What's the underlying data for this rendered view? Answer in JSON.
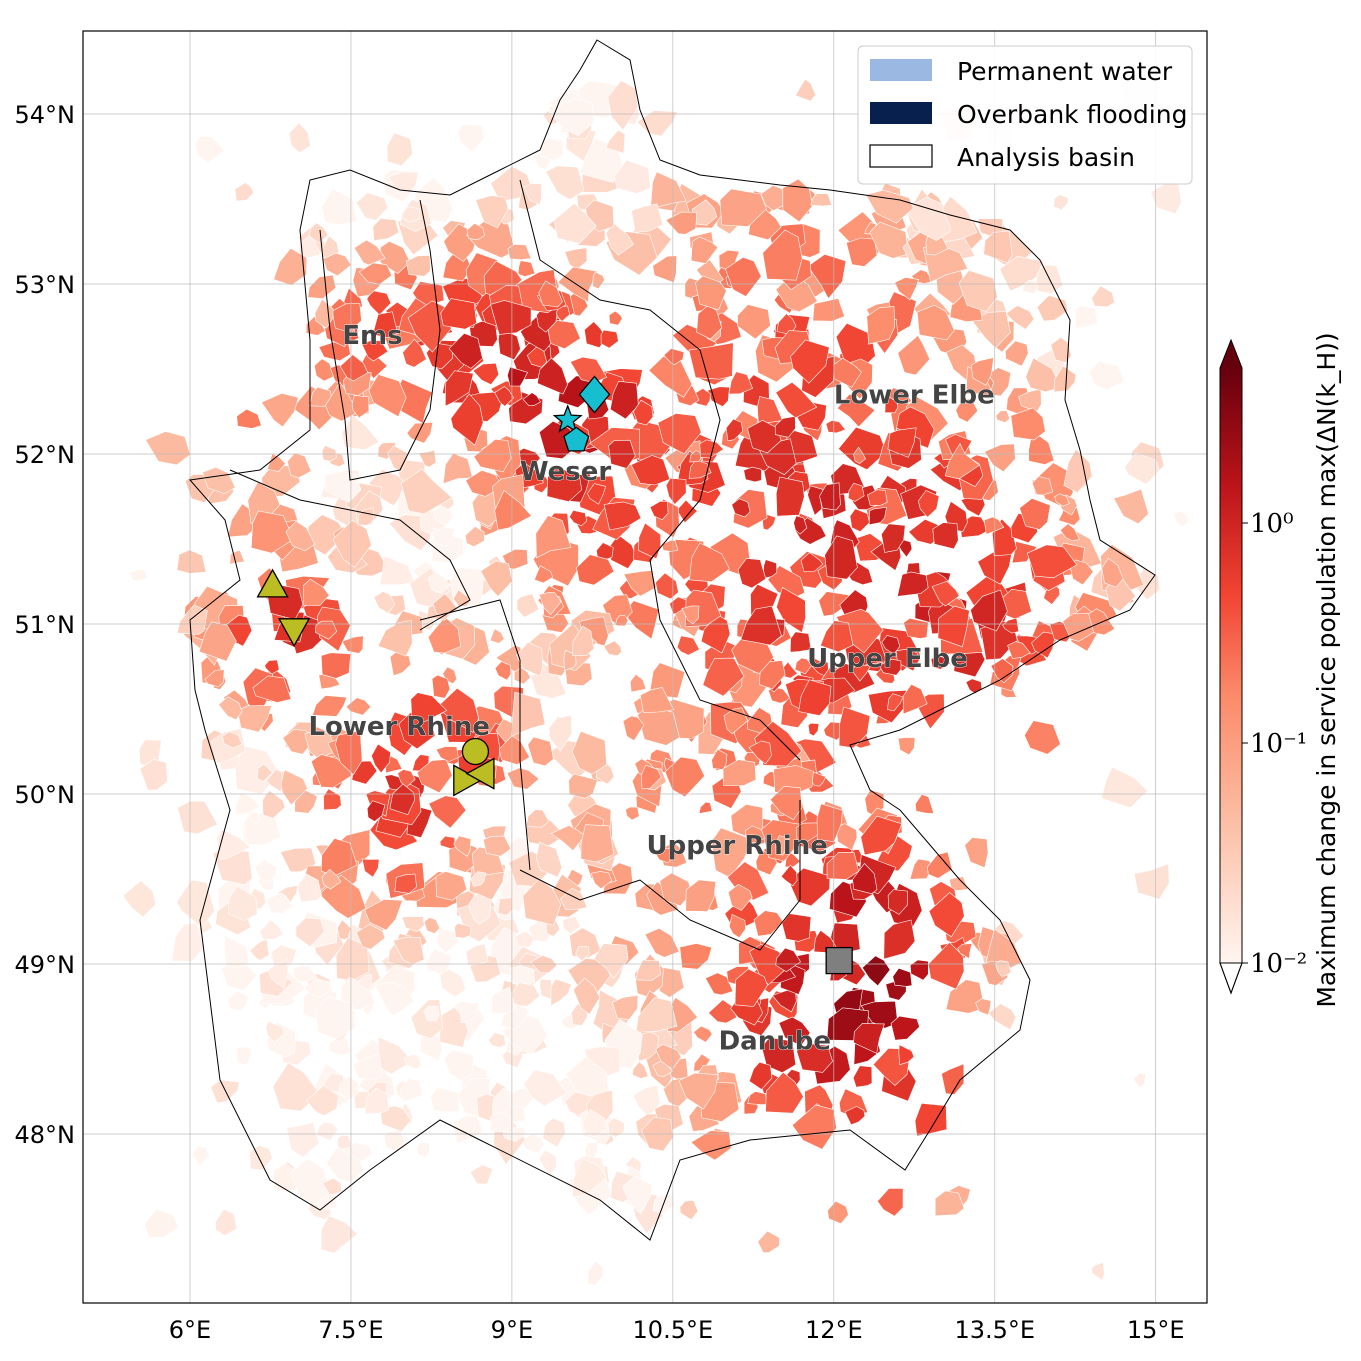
{
  "map": {
    "lon_ticks": [
      {
        "value": 6,
        "label": "6°E"
      },
      {
        "value": 7.5,
        "label": "7.5°E"
      },
      {
        "value": 9,
        "label": "9°E"
      },
      {
        "value": 10.5,
        "label": "10.5°E"
      },
      {
        "value": 12,
        "label": "12°E"
      },
      {
        "value": 13.5,
        "label": "13.5°E"
      },
      {
        "value": 15,
        "label": "15°E"
      }
    ],
    "lat_ticks": [
      {
        "value": 54,
        "label": "54°N"
      },
      {
        "value": 53,
        "label": "53°N"
      },
      {
        "value": 52,
        "label": "52°N"
      },
      {
        "value": 51,
        "label": "51°N"
      },
      {
        "value": 50,
        "label": "50°N"
      },
      {
        "value": 49,
        "label": "49°N"
      },
      {
        "value": 48,
        "label": "48°N"
      }
    ],
    "extent": {
      "lon": [
        5.0,
        15.5
      ],
      "lat": [
        47.0,
        54.5
      ]
    },
    "grid": true,
    "regions": [
      {
        "name": "Ems",
        "lon": 7.7,
        "lat": 52.7
      },
      {
        "name": "Weser",
        "lon": 9.5,
        "lat": 51.9
      },
      {
        "name": "Lower Elbe",
        "lon": 12.75,
        "lat": 52.35
      },
      {
        "name": "Upper Elbe",
        "lon": 12.5,
        "lat": 50.8
      },
      {
        "name": "Lower Rhine",
        "lon": 7.95,
        "lat": 50.4
      },
      {
        "name": "Upper Rhine",
        "lon": 11.1,
        "lat": 49.7
      },
      {
        "name": "Danube",
        "lon": 11.45,
        "lat": 48.55
      }
    ],
    "markers": [
      {
        "shape": "diamond",
        "color": "#17becf",
        "lon": 9.77,
        "lat": 52.35
      },
      {
        "shape": "star",
        "color": "#17becf",
        "lon": 9.52,
        "lat": 52.2
      },
      {
        "shape": "pentagon",
        "color": "#17becf",
        "lon": 9.6,
        "lat": 52.08
      },
      {
        "shape": "triangle-up",
        "color": "#bcbd22",
        "lon": 6.77,
        "lat": 51.23
      },
      {
        "shape": "triangle-down",
        "color": "#bcbd22",
        "lon": 6.97,
        "lat": 50.96
      },
      {
        "shape": "circle",
        "color": "#bcbd22",
        "lon": 8.66,
        "lat": 50.25
      },
      {
        "shape": "triangle-right",
        "color": "#bcbd22",
        "lon": 8.57,
        "lat": 50.08
      },
      {
        "shape": "triangle-left",
        "color": "#bcbd22",
        "lon": 8.72,
        "lat": 50.12
      },
      {
        "shape": "square",
        "color": "#7f7f7f",
        "lon": 12.05,
        "lat": 49.02
      }
    ]
  },
  "legend": {
    "location": "upper-right",
    "items": [
      {
        "label": "Permanent water",
        "color": "#9bb8e3",
        "type": "fill"
      },
      {
        "label": "Overbank flooding",
        "color": "#08204e",
        "type": "fill"
      },
      {
        "label": "Analysis basin",
        "color": "#ffffff",
        "type": "outline"
      }
    ]
  },
  "colorbar": {
    "label": "Maximum change in service population max(ΔN(k_H))",
    "colormap": "Reds",
    "scale": "log",
    "range": [
      0.01,
      5
    ],
    "extend": "both",
    "ticks": [
      {
        "value": 1,
        "label": "10⁰"
      },
      {
        "value": 0.1,
        "label": "10⁻¹"
      },
      {
        "value": 0.01,
        "label": "10⁻²"
      }
    ]
  }
}
